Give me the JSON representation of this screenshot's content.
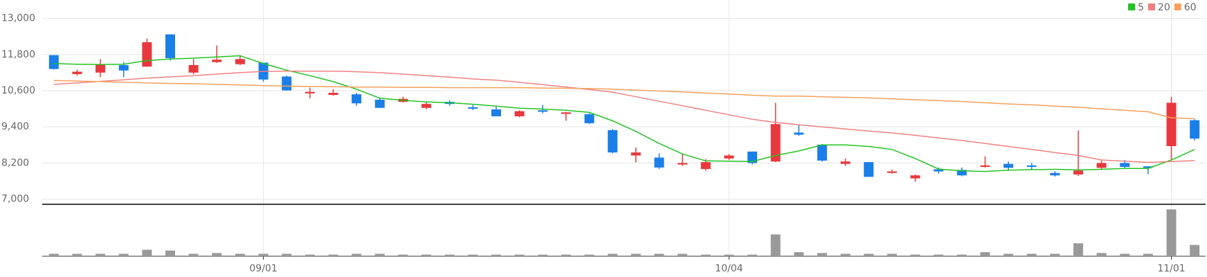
{
  "chart_data": {
    "type": "candlestick",
    "categories": [
      null,
      null,
      null,
      null,
      null,
      null,
      null,
      null,
      null,
      "09/01",
      null,
      null,
      null,
      null,
      null,
      null,
      null,
      null,
      null,
      null,
      null,
      null,
      null,
      null,
      null,
      null,
      null,
      null,
      null,
      "10/04",
      null,
      null,
      null,
      null,
      null,
      null,
      null,
      null,
      null,
      null,
      null,
      null,
      null,
      null,
      null,
      null,
      null,
      null,
      "11/01",
      null
    ],
    "open": [
      11780,
      11150,
      11200,
      11450,
      11400,
      12470,
      11200,
      11550,
      11480,
      11530,
      11070,
      10510,
      10460,
      10480,
      10300,
      10230,
      10030,
      10230,
      10050,
      9980,
      9750,
      9950,
      9830,
      9820,
      9290,
      8450,
      8380,
      8150,
      8000,
      8350,
      8580,
      8250,
      9210,
      8810,
      8170,
      8230,
      7870,
      7690,
      7990,
      7970,
      8070,
      8170,
      8120,
      7870,
      7820,
      8040,
      8200,
      8090,
      8760,
      9620
    ],
    "high": [
      11780,
      11300,
      11650,
      11550,
      12330,
      12470,
      11650,
      12100,
      11750,
      11530,
      11100,
      10700,
      10650,
      10530,
      10350,
      10400,
      10230,
      10280,
      10130,
      10100,
      9950,
      10130,
      9900,
      9850,
      9330,
      8720,
      8520,
      8520,
      8330,
      8500,
      8580,
      10200,
      9450,
      8830,
      8350,
      8230,
      7980,
      7820,
      8050,
      8050,
      8420,
      8250,
      8200,
      7930,
      9280,
      8280,
      8300,
      8090,
      10400,
      9650
    ],
    "low": [
      11300,
      11100,
      11050,
      11050,
      11400,
      11600,
      11150,
      11520,
      11450,
      10900,
      10600,
      10350,
      10430,
      10100,
      10030,
      10200,
      9980,
      10100,
      9960,
      9750,
      9720,
      9850,
      9600,
      9500,
      8520,
      8220,
      8000,
      8100,
      7950,
      8300,
      8150,
      8230,
      9100,
      8250,
      8100,
      7740,
      7850,
      7580,
      7850,
      7760,
      8050,
      7940,
      7980,
      7750,
      7770,
      8000,
      8000,
      7830,
      8320,
      8950
    ],
    "close": [
      11320,
      11230,
      11470,
      11270,
      12210,
      11680,
      11450,
      11630,
      11650,
      10970,
      10610,
      10560,
      10530,
      10180,
      10030,
      10330,
      10160,
      10160,
      10000,
      9750,
      9920,
      9900,
      9880,
      9520,
      8550,
      8550,
      8050,
      8200,
      8230,
      8450,
      8200,
      9490,
      9140,
      8280,
      8250,
      7740,
      7920,
      7790,
      7920,
      7790,
      8120,
      8040,
      8070,
      7790,
      7950,
      8200,
      8070,
      8040,
      10200,
      9010
    ],
    "volume": [
      3,
      3,
      3,
      3,
      8,
      7,
      3,
      4,
      3,
      3,
      3,
      2,
      2,
      3,
      3,
      2,
      2,
      2,
      2,
      2,
      2,
      2,
      2,
      2,
      3,
      3,
      3,
      3,
      2,
      2,
      2,
      27,
      5,
      4,
      3,
      3,
      3,
      2,
      2,
      2,
      5,
      3,
      3,
      3,
      16,
      4,
      3,
      3,
      58,
      14
    ],
    "up_color": "#e8383d",
    "down_color": "#1a7fe8",
    "volume_color": "#999999",
    "series": [
      {
        "name": "5",
        "color": "#22c322",
        "values": [
          11500,
          11480,
          11470,
          11480,
          11600,
          11650,
          11680,
          11720,
          11760,
          11500,
          11280,
          11100,
          10900,
          10650,
          10350,
          10280,
          10230,
          10200,
          10150,
          10090,
          10020,
          9990,
          9950,
          9880,
          9600,
          9250,
          8850,
          8500,
          8270,
          8260,
          8250,
          8450,
          8600,
          8800,
          8800,
          8750,
          8650,
          8350,
          8000,
          7940,
          7920,
          7960,
          7980,
          7990,
          7970,
          7990,
          8020,
          8020,
          8300,
          8650
        ]
      },
      {
        "name": "20",
        "color": "#f08080",
        "values": [
          10810,
          10860,
          10910,
          10960,
          11020,
          11060,
          11100,
          11150,
          11200,
          11240,
          11250,
          11250,
          11250,
          11230,
          11200,
          11150,
          11100,
          11050,
          10990,
          10950,
          10880,
          10800,
          10720,
          10640,
          10550,
          10400,
          10250,
          10100,
          9950,
          9800,
          9650,
          9550,
          9470,
          9400,
          9330,
          9260,
          9200,
          9120,
          9030,
          8950,
          8850,
          8750,
          8650,
          8550,
          8450,
          8300,
          8260,
          8220,
          8250,
          8280
        ]
      },
      {
        "name": "60",
        "color": "#f5a05a",
        "values": [
          10940,
          10920,
          10900,
          10880,
          10860,
          10840,
          10830,
          10810,
          10790,
          10770,
          10750,
          10740,
          10730,
          10720,
          10720,
          10710,
          10710,
          10700,
          10700,
          10700,
          10700,
          10690,
          10680,
          10670,
          10650,
          10620,
          10590,
          10560,
          10520,
          10490,
          10450,
          10420,
          10420,
          10400,
          10380,
          10360,
          10330,
          10300,
          10270,
          10240,
          10200,
          10160,
          10130,
          10090,
          10050,
          10000,
          9950,
          9900,
          9700,
          9670
        ]
      }
    ],
    "ylim": [
      6830,
      13610
    ],
    "yticks": [
      {
        "value": 7000,
        "label": "7,000"
      },
      {
        "value": 8200,
        "label": "8,200"
      },
      {
        "value": 9400,
        "label": "9,400"
      },
      {
        "value": 10600,
        "label": "10,600"
      },
      {
        "value": 11800,
        "label": "11,800"
      },
      {
        "value": 13000,
        "label": "13,000"
      }
    ],
    "vlim": [
      0,
      60
    ],
    "grid": true
  }
}
